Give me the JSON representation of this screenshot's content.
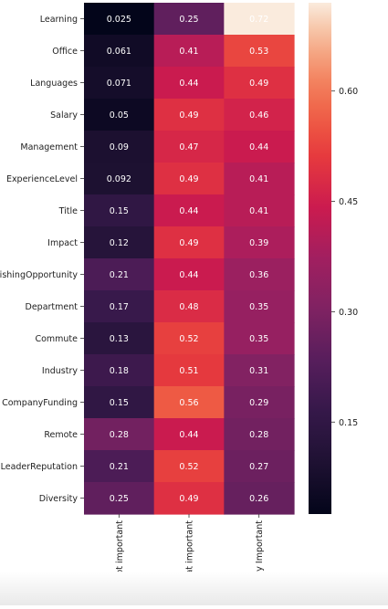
{
  "chart_data": {
    "type": "heatmap",
    "title": "",
    "xlabel": "",
    "ylabel": "",
    "columns": [
      "Not important",
      "Somewhat important",
      "Very Important"
    ],
    "rows": [
      "Learning",
      "Office",
      "Languages",
      "Salary",
      "Management",
      "ExperienceLevel",
      "Title",
      "Impact",
      "EstablishingOpportunity",
      "Department",
      "Commute",
      "Industry",
      "CompanyFunding",
      "Remote",
      "LeaderReputation",
      "Diversity"
    ],
    "values": [
      [
        0.025,
        0.25,
        0.72
      ],
      [
        0.061,
        0.41,
        0.53
      ],
      [
        0.071,
        0.44,
        0.49
      ],
      [
        0.05,
        0.49,
        0.46
      ],
      [
        0.09,
        0.47,
        0.44
      ],
      [
        0.092,
        0.49,
        0.41
      ],
      [
        0.15,
        0.44,
        0.41
      ],
      [
        0.12,
        0.49,
        0.39
      ],
      [
        0.21,
        0.44,
        0.36
      ],
      [
        0.17,
        0.48,
        0.35
      ],
      [
        0.13,
        0.52,
        0.35
      ],
      [
        0.18,
        0.51,
        0.31
      ],
      [
        0.15,
        0.56,
        0.29
      ],
      [
        0.28,
        0.44,
        0.28
      ],
      [
        0.21,
        0.52,
        0.27
      ],
      [
        0.25,
        0.49,
        0.26
      ]
    ],
    "value_labels": [
      [
        "0.025",
        "0.25",
        "0.72"
      ],
      [
        "0.061",
        "0.41",
        "0.53"
      ],
      [
        "0.071",
        "0.44",
        "0.49"
      ],
      [
        "0.05",
        "0.49",
        "0.46"
      ],
      [
        "0.09",
        "0.47",
        "0.44"
      ],
      [
        "0.092",
        "0.49",
        "0.41"
      ],
      [
        "0.15",
        "0.44",
        "0.41"
      ],
      [
        "0.12",
        "0.49",
        "0.39"
      ],
      [
        "0.21",
        "0.44",
        "0.36"
      ],
      [
        "0.17",
        "0.48",
        "0.35"
      ],
      [
        "0.13",
        "0.52",
        "0.35"
      ],
      [
        "0.18",
        "0.51",
        "0.31"
      ],
      [
        "0.15",
        "0.56",
        "0.29"
      ],
      [
        "0.28",
        "0.44",
        "0.28"
      ],
      [
        "0.21",
        "0.52",
        "0.27"
      ],
      [
        "0.25",
        "0.49",
        "0.26"
      ]
    ],
    "colorbar": {
      "range": [
        0.025,
        0.72
      ],
      "ticks": [
        0.15,
        0.3,
        0.45,
        0.6
      ],
      "tick_labels": [
        "0.15",
        "0.30",
        "0.45",
        "0.60"
      ],
      "colormap": "rocket"
    },
    "annotation_color": "#ffffff"
  }
}
